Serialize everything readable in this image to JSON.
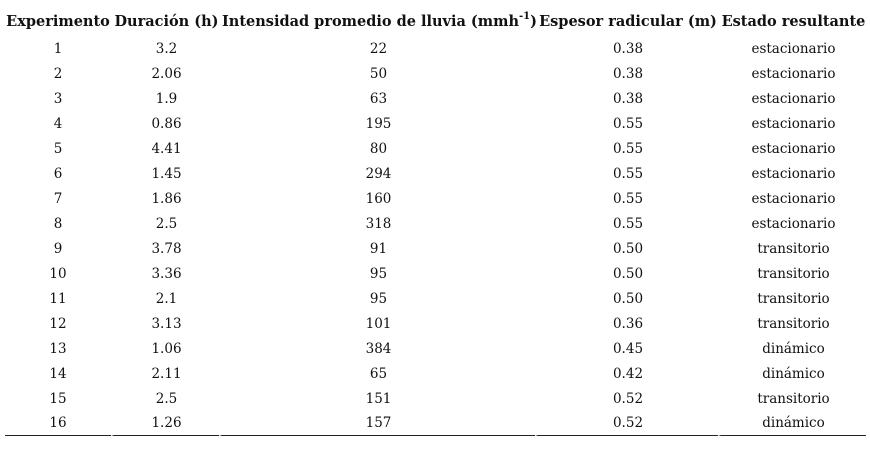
{
  "table": {
    "headers": [
      {
        "text": "Experimento",
        "sup": ""
      },
      {
        "text": "Duración (h)",
        "sup": ""
      },
      {
        "text": "Intensidad promedio de lluvia (mmh",
        "sup": "-1",
        "suffix": ")"
      },
      {
        "text": "Espesor radicular (m)",
        "sup": ""
      },
      {
        "text": "Estado resultante",
        "sup": ""
      }
    ],
    "rows": [
      [
        "1",
        "3.2",
        "22",
        "0.38",
        "estacionario"
      ],
      [
        "2",
        "2.06",
        "50",
        "0.38",
        "estacionario"
      ],
      [
        "3",
        "1.9",
        "63",
        "0.38",
        "estacionario"
      ],
      [
        "4",
        "0.86",
        "195",
        "0.55",
        "estacionario"
      ],
      [
        "5",
        "4.41",
        "80",
        "0.55",
        "estacionario"
      ],
      [
        "6",
        "1.45",
        "294",
        "0.55",
        "estacionario"
      ],
      [
        "7",
        "1.86",
        "160",
        "0.55",
        "estacionario"
      ],
      [
        "8",
        "2.5",
        "318",
        "0.55",
        "estacionario"
      ],
      [
        "9",
        "3.78",
        "91",
        "0.50",
        "transitorio"
      ],
      [
        "10",
        "3.36",
        "95",
        "0.50",
        "transitorio"
      ],
      [
        "11",
        "2.1",
        "95",
        "0.50",
        "transitorio"
      ],
      [
        "12",
        "3.13",
        "101",
        "0.36",
        "transitorio"
      ],
      [
        "13",
        "1.06",
        "384",
        "0.45",
        "dinámico"
      ],
      [
        "14",
        "2.11",
        "65",
        "0.42",
        "dinámico"
      ],
      [
        "15",
        "2.5",
        "151",
        "0.52",
        "transitorio"
      ],
      [
        "16",
        "1.26",
        "157",
        "0.52",
        "dinámico"
      ]
    ]
  }
}
